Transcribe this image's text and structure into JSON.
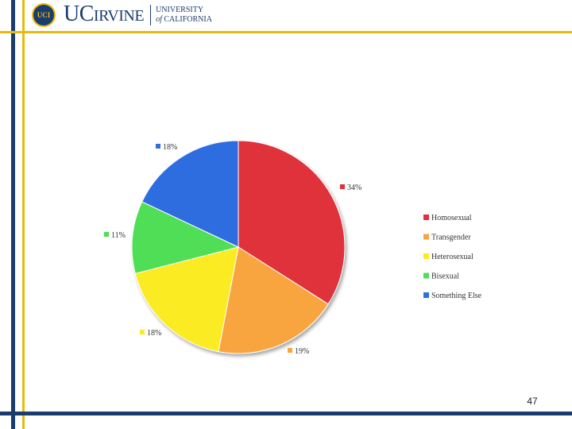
{
  "header": {
    "logo_seal_text": "UCI",
    "logo_uc": "UC",
    "logo_irvine": "IRVINE",
    "logo_university_line1": "UNIVERSITY",
    "logo_university_of": "of",
    "logo_university_line2": "CALIFORNIA"
  },
  "colors": {
    "navy": "#1b3d6d",
    "gold": "#e8b90e"
  },
  "chart_data": {
    "type": "pie",
    "title": "",
    "categories": [
      "Homosexual",
      "Transgender",
      "Heterosexual",
      "Bisexual",
      "Something Else"
    ],
    "values": [
      34,
      19,
      18,
      11,
      18
    ],
    "value_labels": [
      "34%",
      "19%",
      "18%",
      "11%",
      "18%"
    ],
    "colors": [
      "#e0303a",
      "#f8a540",
      "#fbeb20",
      "#4fde55",
      "#2f6de0"
    ],
    "legend": {
      "placement": "right",
      "entries": [
        "Homosexual",
        "Transgender",
        "Heterosexual",
        "Bisexual",
        "Something Else"
      ]
    }
  },
  "footer": {
    "page_number": "47"
  }
}
